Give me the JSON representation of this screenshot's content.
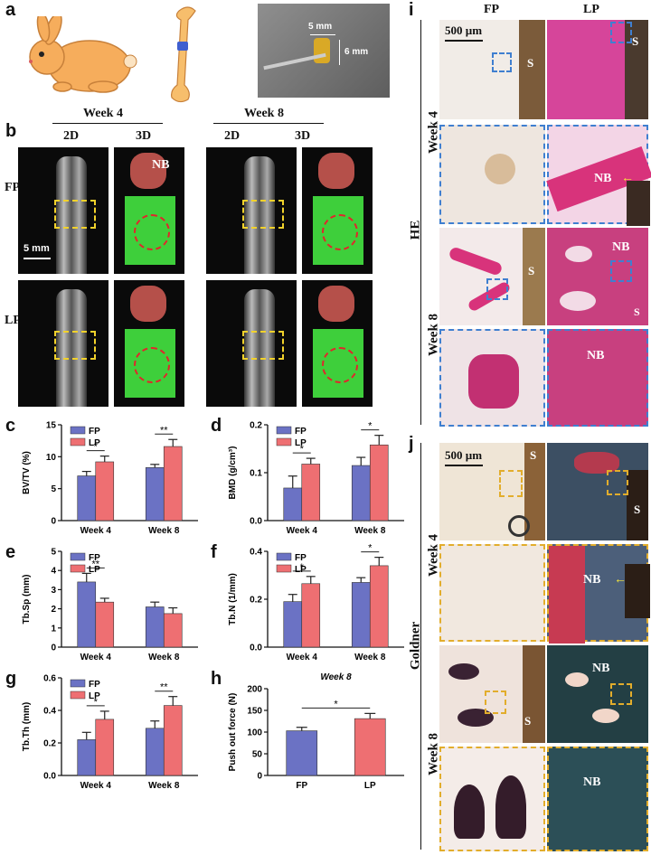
{
  "panels": {
    "a": "a",
    "b": "b",
    "c": "c",
    "d": "d",
    "e": "e",
    "f": "f",
    "g": "g",
    "h": "h",
    "i": "i",
    "j": "j"
  },
  "panel_a": {
    "scale_w": "5 mm",
    "scale_h": "6 mm"
  },
  "panel_b": {
    "week4": "Week 4",
    "week8": "Week 8",
    "col_2d": "2D",
    "col_3d": "3D",
    "row_fp": "FP",
    "row_lp": "LP",
    "nb": "NB",
    "scale": "5 mm"
  },
  "panel_i": {
    "col_fp": "FP",
    "col_lp": "LP",
    "row_week4": "Week 4",
    "row_week8": "Week 8",
    "stain": "HE",
    "scale": "500 µm",
    "s": "S",
    "nb": "NB"
  },
  "panel_j": {
    "row_week4": "Week 4",
    "row_week8": "Week 8",
    "stain": "Goldner",
    "scale": "500 µm",
    "s": "S",
    "nb": "NB"
  },
  "colors": {
    "FP": "#6b72c4",
    "LP": "#ee6f72",
    "bone_model": "#f7be6c",
    "rabbit": "#f6ad5c",
    "ct_green": "#3ecf3b",
    "he_pink": "#d8337b",
    "goldner_teal": "#2a4a52"
  },
  "chart_data": [
    {
      "id": "c",
      "type": "bar",
      "categories": [
        "Week 4",
        "Week 8"
      ],
      "ylabel": "BV/TV (%)",
      "ylim": [
        0,
        15
      ],
      "yticks": [
        "0",
        "5",
        "10",
        "15"
      ],
      "series": [
        {
          "name": "FP",
          "values": [
            7.0,
            8.3
          ],
          "err": [
            0.7,
            0.5
          ]
        },
        {
          "name": "LP",
          "values": [
            9.2,
            11.6
          ],
          "err": [
            0.9,
            1.1
          ]
        }
      ],
      "sig": [
        "*",
        "**"
      ]
    },
    {
      "id": "d",
      "type": "bar",
      "categories": [
        "Week 4",
        "Week 8"
      ],
      "ylabel": "BMD (g/cm³)",
      "ylim": [
        0,
        0.2
      ],
      "yticks": [
        "0.0",
        "0.1",
        "0.2"
      ],
      "series": [
        {
          "name": "FP",
          "values": [
            0.068,
            0.115
          ],
          "err": [
            0.025,
            0.017
          ]
        },
        {
          "name": "LP",
          "values": [
            0.118,
            0.158
          ],
          "err": [
            0.012,
            0.02
          ]
        }
      ],
      "sig": [
        "*",
        "*"
      ]
    },
    {
      "id": "e",
      "type": "bar",
      "categories": [
        "Week 4",
        "Week 8"
      ],
      "ylabel": "Tb.Sp (mm)",
      "ylim": [
        0,
        5
      ],
      "yticks": [
        "0",
        "1",
        "2",
        "3",
        "4",
        "5"
      ],
      "series": [
        {
          "name": "FP",
          "values": [
            3.4,
            2.1
          ],
          "err": [
            0.45,
            0.25
          ]
        },
        {
          "name": "LP",
          "values": [
            2.35,
            1.75
          ],
          "err": [
            0.2,
            0.3
          ]
        }
      ],
      "sig": [
        "**",
        ""
      ]
    },
    {
      "id": "f",
      "type": "bar",
      "categories": [
        "Week 4",
        "Week 8"
      ],
      "ylabel": "Tb.N (1/mm)",
      "ylim": [
        0,
        0.4
      ],
      "yticks": [
        "0.0",
        "0.2",
        "0.4"
      ],
      "series": [
        {
          "name": "FP",
          "values": [
            0.19,
            0.27
          ],
          "err": [
            0.03,
            0.02
          ]
        },
        {
          "name": "LP",
          "values": [
            0.265,
            0.34
          ],
          "err": [
            0.03,
            0.035
          ]
        }
      ],
      "sig": [
        "*",
        "*"
      ]
    },
    {
      "id": "g",
      "type": "bar",
      "categories": [
        "Week 4",
        "Week 8"
      ],
      "ylabel": "Tb.Th (mm)",
      "ylim": [
        0,
        0.6
      ],
      "yticks": [
        "0.0",
        "0.2",
        "0.4",
        "0.6"
      ],
      "series": [
        {
          "name": "FP",
          "values": [
            0.22,
            0.29
          ],
          "err": [
            0.045,
            0.045
          ]
        },
        {
          "name": "LP",
          "values": [
            0.345,
            0.43
          ],
          "err": [
            0.05,
            0.055
          ]
        }
      ],
      "sig": [
        "*",
        "**"
      ]
    },
    {
      "id": "h",
      "type": "bar",
      "title": "Week 8",
      "categories": [
        "FP",
        "LP"
      ],
      "ylabel": "Push out force (N)",
      "ylim": [
        0,
        200
      ],
      "yticks": [
        "0",
        "50",
        "100",
        "150",
        "200"
      ],
      "values": [
        103,
        131
      ],
      "err": [
        8,
        12
      ],
      "sig": [
        "*"
      ]
    }
  ]
}
